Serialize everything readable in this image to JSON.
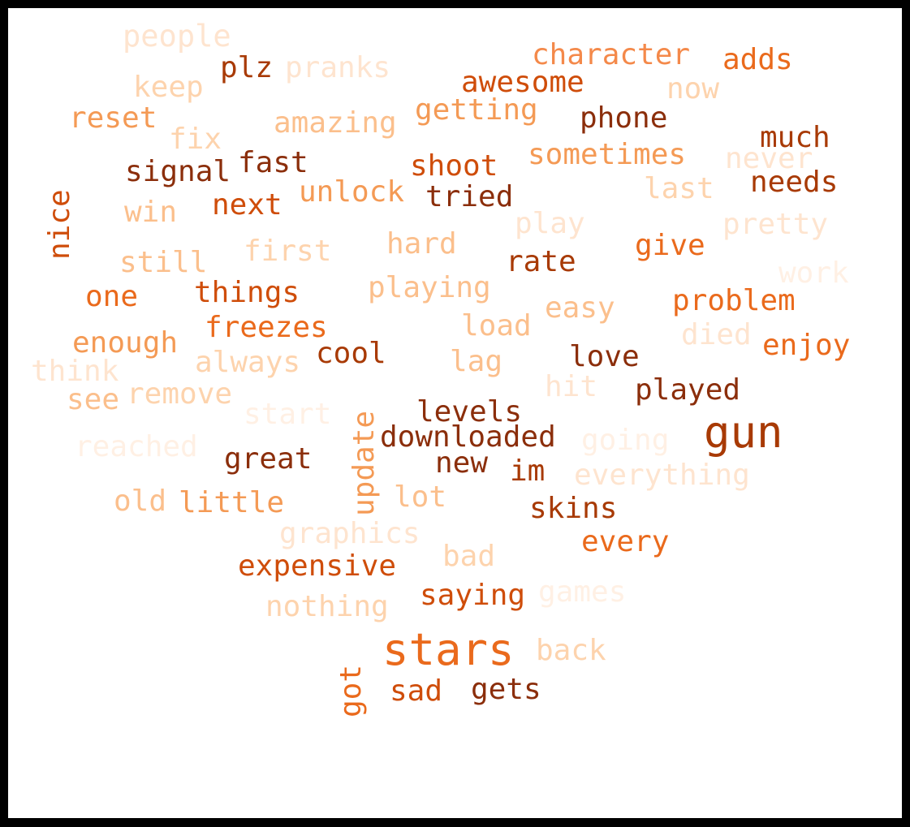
{
  "palette": {
    "darkest": "#8b2e0b",
    "dark": "#a83a05",
    "mid_dark": "#cf4d0a",
    "mid": "#ea6a1c",
    "mid_light": "#f49a55",
    "light": "#fbbf8c",
    "lighter": "#fdd3ad",
    "lightest": "#fee4cf",
    "faint": "#fff0e4"
  },
  "words": {
    "people": "people",
    "plz": "plz",
    "pranks": "pranks",
    "character": "character",
    "adds": "adds",
    "keep": "keep",
    "awesome": "awesome",
    "now": "now",
    "reset": "reset",
    "amazing": "amazing",
    "getting": "getting",
    "phone": "phone",
    "fix": "fix",
    "much": "much",
    "signal": "signal",
    "fast": "fast",
    "shoot": "shoot",
    "sometimes": "sometimes",
    "never": "never",
    "nice": "nice",
    "unlock": "unlock",
    "tried": "tried",
    "last": "last",
    "needs": "needs",
    "win": "win",
    "next": "next",
    "play": "play",
    "pretty": "pretty",
    "hard": "hard",
    "give": "give",
    "first": "first",
    "still": "still",
    "rate": "rate",
    "work": "work",
    "one": "one",
    "things": "things",
    "playing": "playing",
    "problem": "problem",
    "easy": "easy",
    "freezes": "freezes",
    "load": "load",
    "died": "died",
    "enough": "enough",
    "enjoy": "enjoy",
    "think": "think",
    "always": "always",
    "cool": "cool",
    "lag": "lag",
    "love": "love",
    "hit": "hit",
    "played": "played",
    "see": "see",
    "remove": "remove",
    "start": "start",
    "update": "update",
    "levels": "levels",
    "gun": "gun",
    "reached": "reached",
    "downloaded": "downloaded",
    "going": "going",
    "great": "great",
    "new": "new",
    "im": "im",
    "everything": "everything",
    "old": "old",
    "little": "little",
    "lot": "lot",
    "skins": "skins",
    "graphics": "graphics",
    "every": "every",
    "bad": "bad",
    "expensive": "expensive",
    "saying": "saying",
    "games": "games",
    "nothing": "nothing",
    "stars": "stars",
    "back": "back",
    "got": "got",
    "sad": "sad",
    "gets": "gets"
  }
}
